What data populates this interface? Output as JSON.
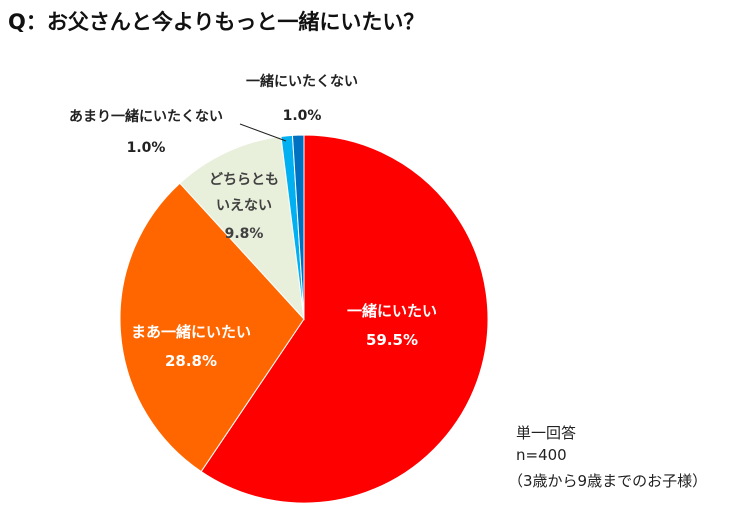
{
  "title": "Q：お父さんと今よりもっと一緒にいたい？",
  "chart_data": {
    "type": "pie",
    "start": "12 o'clock",
    "direction": "clockwise",
    "slices": [
      {
        "label": "一緒にいたい",
        "value": 59.5,
        "value_label": "59.5%",
        "color": "#ff0000",
        "label_color": "#ffffff"
      },
      {
        "label": "まあ一緒にいたい",
        "value": 28.8,
        "value_label": "28.8%",
        "color": "#ff6600",
        "label_color": "#ffffff"
      },
      {
        "label": "どちらとも\nいえない",
        "value": 9.8,
        "value_label": "9.8%",
        "color": "#e8f0db",
        "label_color": "#404040"
      },
      {
        "label": "あまり一緒にいたくない",
        "value": 1.0,
        "value_label": "1.0%",
        "color": "#00b0f0",
        "label_color": "#222222"
      },
      {
        "label": "一緒にいたくない",
        "value": 1.0,
        "value_label": "1.0%",
        "color": "#0070c0",
        "label_color": "#222222"
      }
    ]
  },
  "notes": {
    "line1": "単一回答",
    "line2": "n=400",
    "line3": "（3歳から9歳までのお子様）"
  }
}
